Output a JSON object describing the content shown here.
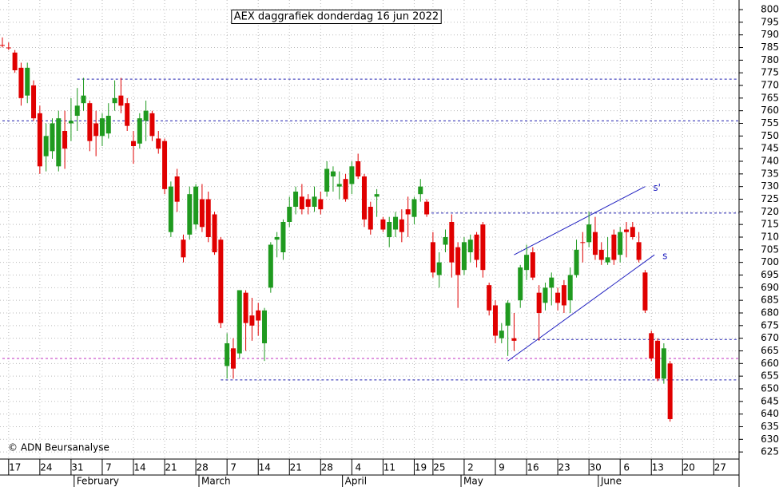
{
  "chart_data": {
    "type": "candlestick",
    "title": "AEX daggrafiek donderdag 16 jun 2022",
    "copyright": "© ADN Beursanalyse",
    "categories": [
      null,
      "17",
      null,
      null,
      null,
      null,
      "24",
      null,
      null,
      null,
      null,
      "31",
      null,
      null,
      null,
      null,
      "7",
      null,
      null,
      null,
      null,
      "14",
      null,
      null,
      null,
      null,
      "21",
      null,
      null,
      null,
      null,
      "28",
      null,
      null,
      null,
      null,
      "7",
      null,
      null,
      null,
      null,
      "14",
      null,
      null,
      null,
      null,
      "21",
      null,
      null,
      null,
      null,
      "28",
      null,
      null,
      null,
      null,
      "4",
      null,
      null,
      null,
      null,
      "11",
      null,
      null,
      null,
      null,
      "19",
      null,
      null,
      "25",
      null,
      null,
      null,
      null,
      "2",
      null,
      null,
      null,
      null,
      "9",
      null,
      null,
      null,
      null,
      "16",
      null,
      null,
      null,
      null,
      "23",
      null,
      null,
      null,
      null,
      "30",
      null,
      null,
      null,
      null,
      "6",
      null,
      null,
      null,
      null,
      "13",
      null,
      null,
      null,
      null,
      "20",
      null,
      null,
      null,
      null,
      "27",
      null,
      null,
      null
    ],
    "months": [
      {
        "label": "February",
        "index": 12
      },
      {
        "label": "March",
        "index": 32
      },
      {
        "label": "April",
        "index": 55
      },
      {
        "label": "May",
        "index": 74
      },
      {
        "label": "June",
        "index": 96
      }
    ],
    "open": [
      786,
      785,
      783,
      777,
      766,
      770,
      759,
      742,
      744,
      738,
      752,
      755,
      758,
      763,
      763,
      755,
      750,
      751,
      763,
      766,
      763,
      748,
      747,
      756,
      759,
      749,
      748,
      712,
      734,
      709,
      711,
      715,
      725,
      725,
      719,
      709,
      659,
      666,
      664,
      688,
      679,
      681,
      668,
      690,
      709,
      704,
      716,
      722,
      726,
      725,
      722,
      725,
      728,
      734,
      730,
      733,
      731,
      740,
      734,
      722,
      726,
      717,
      710,
      713,
      717,
      721,
      718,
      727,
      724,
      708,
      695,
      707,
      716,
      706,
      697,
      704,
      711,
      715,
      691,
      683,
      670,
      675,
      670,
      685,
      697,
      704,
      688,
      684,
      690,
      688,
      691,
      685,
      695,
      708,
      708,
      712,
      705,
      700,
      711,
      703,
      713,
      714,
      708,
      696,
      672,
      669,
      654,
      660,
      null,
      null,
      null,
      null,
      null,
      null,
      null,
      null,
      null,
      null
    ],
    "high": [
      789,
      787,
      784,
      779,
      779,
      772,
      762,
      755,
      757,
      760,
      760,
      765,
      769,
      773,
      764,
      760,
      759,
      763,
      772,
      773,
      765,
      752,
      759,
      764,
      760,
      752,
      749,
      732,
      737,
      711,
      730,
      731,
      731,
      728,
      720,
      710,
      672,
      670,
      689,
      689,
      686,
      684,
      682,
      708,
      712,
      717,
      726,
      730,
      731,
      727,
      730,
      728,
      740,
      738,
      736,
      735,
      740,
      743,
      735,
      724,
      729,
      718,
      718,
      720,
      721,
      726,
      726,
      733,
      725,
      712,
      704,
      713,
      719,
      708,
      710,
      711,
      712,
      716,
      692,
      685,
      676,
      685,
      680,
      699,
      707,
      706,
      691,
      692,
      696,
      690,
      693,
      698,
      709,
      712,
      720,
      718,
      708,
      710,
      713,
      714,
      716,
      716,
      712,
      697,
      673,
      670,
      668,
      661,
      null,
      null,
      null,
      null,
      null,
      null,
      null,
      null,
      null,
      null
    ],
    "low": [
      785,
      784,
      775,
      762,
      763,
      756,
      735,
      736,
      741,
      736,
      737,
      748,
      752,
      760,
      744,
      742,
      746,
      749,
      760,
      759,
      752,
      739,
      745,
      748,
      748,
      743,
      727,
      710,
      720,
      700,
      709,
      713,
      712,
      708,
      703,
      674,
      654,
      654,
      662,
      665,
      669,
      671,
      661,
      688,
      702,
      701,
      714,
      719,
      719,
      719,
      720,
      719,
      726,
      728,
      725,
      724,
      727,
      733,
      714,
      711,
      718,
      712,
      706,
      710,
      708,
      710,
      715,
      724,
      718,
      694,
      690,
      704,
      694,
      682,
      695,
      700,
      698,
      694,
      679,
      668,
      668,
      663,
      665,
      682,
      693,
      693,
      669,
      681,
      683,
      681,
      680,
      680,
      694,
      700,
      706,
      701,
      699,
      699,
      699,
      700,
      702,
      709,
      700,
      680,
      661,
      653,
      652,
      637,
      null,
      null,
      null,
      null,
      null,
      null,
      null,
      null,
      null,
      null
    ],
    "close": [
      786,
      785,
      776,
      765,
      777,
      757,
      738,
      750,
      755,
      757,
      745,
      756,
      762,
      766,
      748,
      750,
      757,
      758,
      765,
      762,
      754,
      746,
      757,
      760,
      750,
      745,
      729,
      730,
      724,
      702,
      727,
      730,
      714,
      710,
      704,
      676,
      668,
      658,
      689,
      676,
      675,
      677,
      681,
      707,
      710,
      716,
      722,
      728,
      721,
      722,
      726,
      721,
      737,
      736,
      731,
      725,
      738,
      734,
      717,
      713,
      727,
      713,
      716,
      718,
      712,
      719,
      725,
      730,
      719,
      696,
      700,
      710,
      700,
      695,
      708,
      709,
      701,
      697,
      681,
      671,
      673,
      684,
      669,
      698,
      703,
      694,
      680,
      690,
      694,
      684,
      683,
      695,
      705,
      708,
      715,
      703,
      701,
      702,
      701,
      712,
      712,
      710,
      701,
      681,
      662,
      654,
      666,
      638,
      null,
      null,
      null,
      null,
      null,
      null,
      null,
      null,
      null,
      null
    ],
    "up_color": "#1f9a1f",
    "down_color": "#e00000",
    "ylim": [
      622.2,
      803.8
    ],
    "yticks": [
      625,
      630,
      635,
      640,
      645,
      650,
      655,
      660,
      665,
      670,
      675,
      680,
      685,
      690,
      695,
      700,
      705,
      710,
      715,
      720,
      725,
      730,
      735,
      740,
      745,
      750,
      755,
      760,
      765,
      770,
      775,
      780,
      785,
      790,
      795,
      800
    ],
    "grid": true,
    "hlines": [
      {
        "value": 772.5,
        "color": "#2020b0",
        "from_index": 12
      },
      {
        "value": 756,
        "color": "#2020b0",
        "from_index": 0
      },
      {
        "value": 719.5,
        "color": "#2020b0",
        "from_index": 68
      },
      {
        "value": 669.5,
        "color": "#2020b0",
        "from_index": 85
      },
      {
        "value": 653.5,
        "color": "#2020b0",
        "from_index": 35
      },
      {
        "value": 662,
        "color": "#c030c0",
        "from_index": 0
      }
    ],
    "trendlines": [
      {
        "label": "s'",
        "color": "#2020c0",
        "points": [
          [
            82,
            703
          ],
          [
            103,
            730
          ]
        ]
      },
      {
        "label": "s",
        "color": "#2020c0",
        "points": [
          [
            81,
            661
          ],
          [
            104.5,
            703
          ]
        ]
      }
    ]
  }
}
